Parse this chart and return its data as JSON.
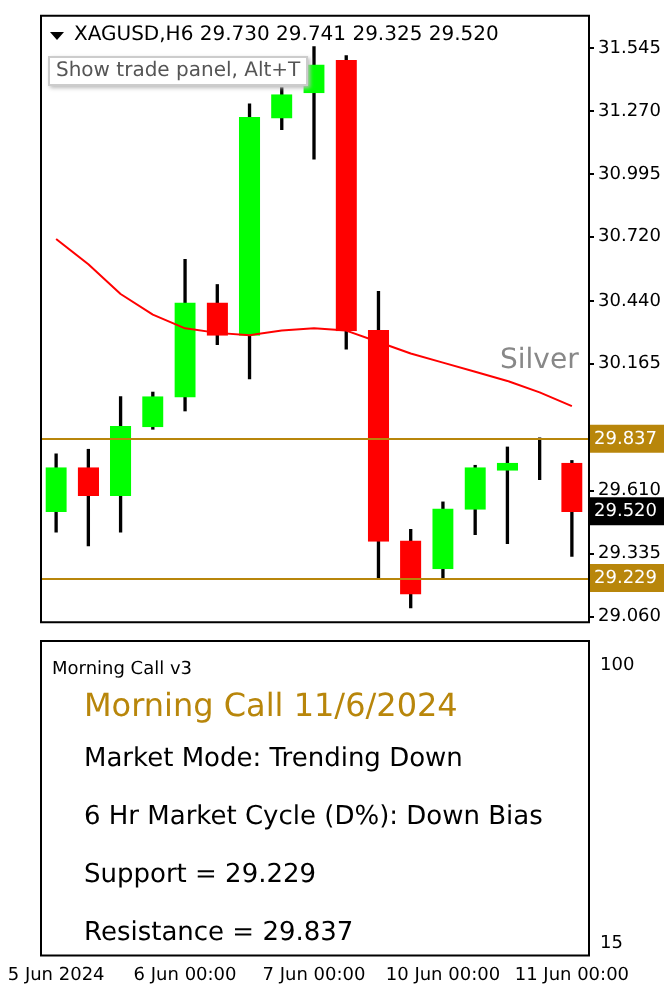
{
  "chart_data": [
    {
      "type": "candlestick",
      "title": "XAGUSD,H6  29.730 29.741 29.325 29.520",
      "categories": [
        null,
        null,
        null,
        null,
        null,
        null,
        null,
        null,
        null,
        null,
        null,
        null,
        null,
        null,
        null,
        null,
        null
      ],
      "ohlc": [
        [
          29.52,
          29.77,
          29.43,
          29.71
        ],
        [
          29.71,
          29.79,
          29.37,
          29.59
        ],
        [
          29.59,
          30.02,
          29.43,
          29.89
        ],
        [
          29.89,
          30.04,
          29.88,
          30.02
        ],
        [
          30.02,
          30.62,
          29.96,
          30.43
        ],
        [
          30.43,
          30.51,
          30.25,
          30.29
        ],
        [
          30.29,
          31.3,
          30.1,
          31.24
        ],
        [
          31.24,
          31.37,
          31.19,
          31.34
        ],
        [
          31.35,
          31.55,
          31.06,
          31.47
        ],
        [
          31.49,
          31.51,
          30.23,
          30.31
        ],
        [
          30.31,
          30.48,
          29.23,
          29.39
        ],
        [
          29.39,
          29.44,
          29.1,
          29.16
        ],
        [
          29.27,
          29.56,
          29.23,
          29.53
        ],
        [
          29.53,
          29.72,
          29.42,
          29.71
        ],
        [
          29.7,
          29.8,
          29.38,
          29.73
        ],
        [
          29.73,
          29.84,
          29.66,
          29.73
        ],
        [
          29.73,
          29.741,
          29.325,
          29.52
        ]
      ],
      "colors": [
        "#00ff00",
        "#ff0000",
        "#00ff00",
        "#00ff00",
        "#00ff00",
        "#ff0000",
        "#00ff00",
        "#00ff00",
        "#00ff00",
        "#ff0000",
        "#ff0000",
        "#ff0000",
        "#00ff00",
        "#00ff00",
        "#00ff00",
        "#00ff00",
        "#ff0000"
      ],
      "series": [
        {
          "type": "line",
          "color": "#ff0000",
          "values": [
            30.71,
            30.6,
            30.47,
            30.38,
            30.32,
            30.3,
            30.29,
            30.31,
            30.32,
            30.31,
            30.26,
            30.21,
            30.17,
            30.13,
            30.09,
            30.04,
            29.98
          ]
        }
      ],
      "ylim": [
        29.04,
        31.69
      ],
      "yticks": [
        {
          "value": 31.545,
          "label": "31.545"
        },
        {
          "value": 31.27,
          "label": "31.270"
        },
        {
          "value": 30.995,
          "label": "30.995"
        },
        {
          "value": 30.72,
          "label": "30.720"
        },
        {
          "value": 30.44,
          "label": "30.440"
        },
        {
          "value": 30.165,
          "label": "30.165"
        },
        {
          "value": 29.89,
          "label": null
        },
        {
          "value": 29.61,
          "label": "29.610"
        },
        {
          "value": 29.335,
          "label": "29.335"
        },
        {
          "value": 29.06,
          "label": "29.060"
        }
      ],
      "ref_lines": [
        {
          "axis": "y",
          "value": 29.837,
          "label": "29.837",
          "color": "#b8860b"
        },
        {
          "axis": "y",
          "value": 29.229,
          "label": "29.229",
          "color": "#b8860b"
        }
      ],
      "annotations": [
        "Show trade panel, Alt+T",
        "Silver",
        {
          "text": "29.520",
          "y": 29.52
        }
      ],
      "tick_labels": "y"
    },
    {
      "type": "other",
      "title": "Morning Call v3",
      "categories": [
        "5 Jun 2024",
        null,
        null,
        null,
        "6 Jun 00:00",
        null,
        null,
        null,
        "7 Jun 00:00",
        null,
        null,
        null,
        "10 Jun 00:00",
        null,
        null,
        null,
        "11 Jun 00:00"
      ],
      "annotations": [
        "Morning Call 11/6/2024",
        "Market Mode: Trending Down",
        "6 Hr Market Cycle (D%): Down Bias",
        "Support = 29.229",
        "Resistance = 29.837",
        "100",
        "15"
      ]
    }
  ]
}
